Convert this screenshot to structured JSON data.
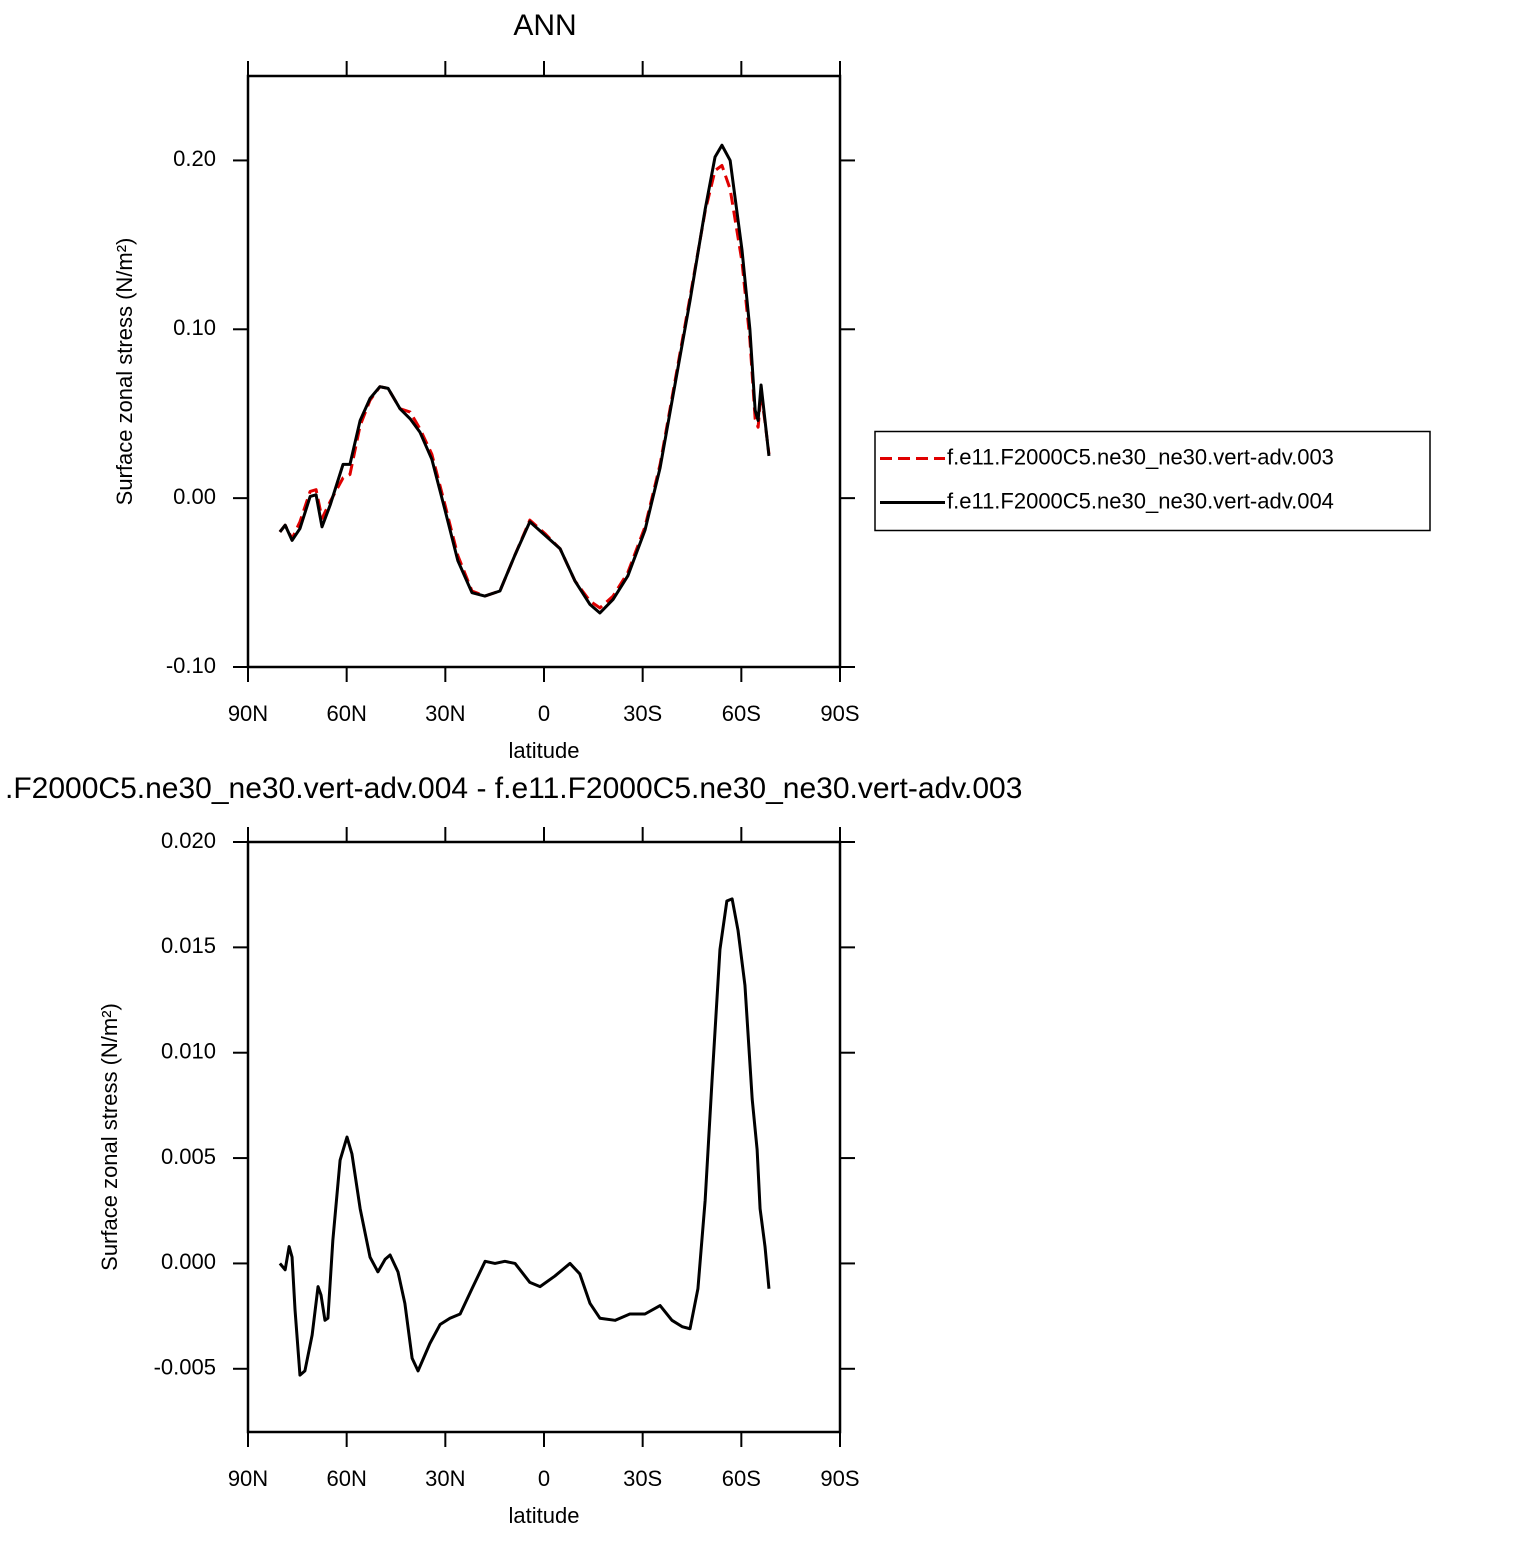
{
  "chart_data": [
    {
      "type": "line",
      "title": "ANN",
      "xlabel": "latitude",
      "ylabel": "Surface zonal stress (N/m²)",
      "x": [
        80.3,
        78.7,
        76.6,
        74.2,
        71.1,
        69.3,
        67.5,
        65.0,
        61.1,
        59.0,
        55.9,
        52.9,
        49.9,
        47.4,
        43.8,
        40.7,
        37.7,
        34.1,
        30.1,
        26.2,
        21.9,
        18.0,
        13.4,
        8.9,
        4.3,
        -0.3,
        -4.9,
        -9.4,
        -14.0,
        -17.0,
        -21.0,
        -25.5,
        -30.7,
        -35.3,
        -39.8,
        -44.4,
        -49.0,
        -52.0,
        -54.1,
        -56.6,
        -60.2,
        -62.6,
        -64.2,
        -65.1,
        -66.0,
        -67.2,
        -68.4
      ],
      "series": [
        {
          "name": "f.e11.F2000C5.ne30_ne30.vert-adv.003",
          "color": "#e00000",
          "line_style": "dashed",
          "values": [
            -0.02,
            -0.016,
            -0.024,
            -0.014,
            0.004,
            0.005,
            -0.012,
            -0.002,
            0.012,
            0.014,
            0.043,
            0.058,
            0.066,
            0.065,
            0.053,
            0.051,
            0.041,
            0.026,
            -0.004,
            -0.034,
            -0.055,
            -0.058,
            -0.055,
            -0.034,
            -0.013,
            -0.021,
            -0.03,
            -0.049,
            -0.061,
            -0.065,
            -0.058,
            -0.044,
            -0.017,
            0.02,
            0.069,
            0.119,
            0.17,
            0.194,
            0.197,
            0.183,
            0.14,
            0.094,
            0.047,
            0.042,
            0.062,
            0.045,
            0.026
          ]
        },
        {
          "name": "f.e11.F2000C5.ne30_ne30.vert-adv.004",
          "color": "#000000",
          "line_style": "solid",
          "values": [
            -0.02,
            -0.016,
            -0.025,
            -0.018,
            0.001,
            0.002,
            -0.017,
            -0.004,
            0.02,
            0.02,
            0.046,
            0.059,
            0.066,
            0.065,
            0.053,
            0.047,
            0.039,
            0.023,
            -0.007,
            -0.037,
            -0.056,
            -0.058,
            -0.055,
            -0.034,
            -0.014,
            -0.022,
            -0.03,
            -0.049,
            -0.063,
            -0.068,
            -0.06,
            -0.046,
            -0.019,
            0.018,
            0.067,
            0.117,
            0.171,
            0.202,
            0.209,
            0.2,
            0.147,
            0.1,
            0.052,
            0.046,
            0.067,
            0.046,
            0.025
          ]
        }
      ],
      "xlim": [
        90,
        -90
      ],
      "xticks": [
        {
          "value": 90,
          "label": "90N"
        },
        {
          "value": 60,
          "label": "60N"
        },
        {
          "value": 30,
          "label": "30N"
        },
        0,
        {
          "value": -30,
          "label": "30S"
        },
        {
          "value": -60,
          "label": "60S"
        },
        {
          "value": -90,
          "label": "90S"
        }
      ],
      "ylim": [
        -0.1,
        0.25
      ],
      "yticks": [
        {
          "value": -0.1,
          "label": "-0.10"
        },
        {
          "value": 0.0,
          "label": "0.00"
        },
        {
          "value": 0.1,
          "label": "0.10"
        },
        {
          "value": 0.2,
          "label": "0.20"
        }
      ],
      "legend": "right"
    },
    {
      "type": "line",
      "title": ".F2000C5.ne30_ne30.vert-adv.004 - f.e11.F2000C5.ne30_ne30.vert-adv.003",
      "xlabel": "latitude",
      "ylabel": "Surface zonal stress (N/m²)",
      "x": [
        80.3,
        78.7,
        77.5,
        76.6,
        75.7,
        74.2,
        72.7,
        70.5,
        68.7,
        67.8,
        66.6,
        65.7,
        64.2,
        62.0,
        59.9,
        58.4,
        55.9,
        52.9,
        50.5,
        48.3,
        46.8,
        44.4,
        42.3,
        40.1,
        38.3,
        34.7,
        31.6,
        28.6,
        25.5,
        21.9,
        17.9,
        14.9,
        11.9,
        8.8,
        4.3,
        1.2,
        -3.3,
        -7.9,
        -10.9,
        -14.0,
        -17.0,
        -21.6,
        -26.1,
        -30.7,
        -35.3,
        -38.9,
        -42.0,
        -44.4,
        -46.8,
        -49.0,
        -51.1,
        -53.5,
        -55.6,
        -57.2,
        -59.0,
        -61.1,
        -63.3,
        -64.8,
        -65.7,
        -67.2,
        -68.4
      ],
      "series": [
        {
          "color": "#000000",
          "line_style": "solid",
          "values": [
            0.0,
            -0.0003,
            0.0008,
            0.0003,
            -0.0022,
            -0.0053,
            -0.0051,
            -0.0034,
            -0.0011,
            -0.0015,
            -0.0027,
            -0.0026,
            0.0011,
            0.0049,
            0.006,
            0.0052,
            0.0026,
            0.0003,
            -0.0004,
            0.0002,
            0.0004,
            -0.0004,
            -0.0019,
            -0.0045,
            -0.0051,
            -0.0038,
            -0.0029,
            -0.0026,
            -0.0024,
            -0.0012,
            0.0001,
            0.0,
            0.0001,
            0.0,
            -0.0009,
            -0.0011,
            -0.0006,
            0.0,
            -0.0005,
            -0.0019,
            -0.0026,
            -0.0027,
            -0.0024,
            -0.0024,
            -0.002,
            -0.0027,
            -0.003,
            -0.0031,
            -0.0012,
            0.003,
            0.0087,
            0.0149,
            0.0172,
            0.0173,
            0.0158,
            0.0132,
            0.0078,
            0.0054,
            0.0026,
            0.0008,
            -0.0012
          ]
        }
      ],
      "xlim": [
        90,
        -90
      ],
      "xticks": [
        {
          "value": 90,
          "label": "90N"
        },
        {
          "value": 60,
          "label": "60N"
        },
        {
          "value": 30,
          "label": "30N"
        },
        0,
        {
          "value": -30,
          "label": "30S"
        },
        {
          "value": -60,
          "label": "60S"
        },
        {
          "value": -90,
          "label": "90S"
        }
      ],
      "ylim": [
        -0.008,
        0.02
      ],
      "yticks": [
        {
          "value": -0.005,
          "label": "-0.005"
        },
        {
          "value": 0.0,
          "label": "0.000"
        },
        {
          "value": 0.005,
          "label": "0.005"
        },
        {
          "value": 0.01,
          "label": "0.010"
        },
        {
          "value": 0.015,
          "label": "0.015"
        },
        {
          "value": 0.02,
          "label": "0.020"
        }
      ]
    }
  ]
}
